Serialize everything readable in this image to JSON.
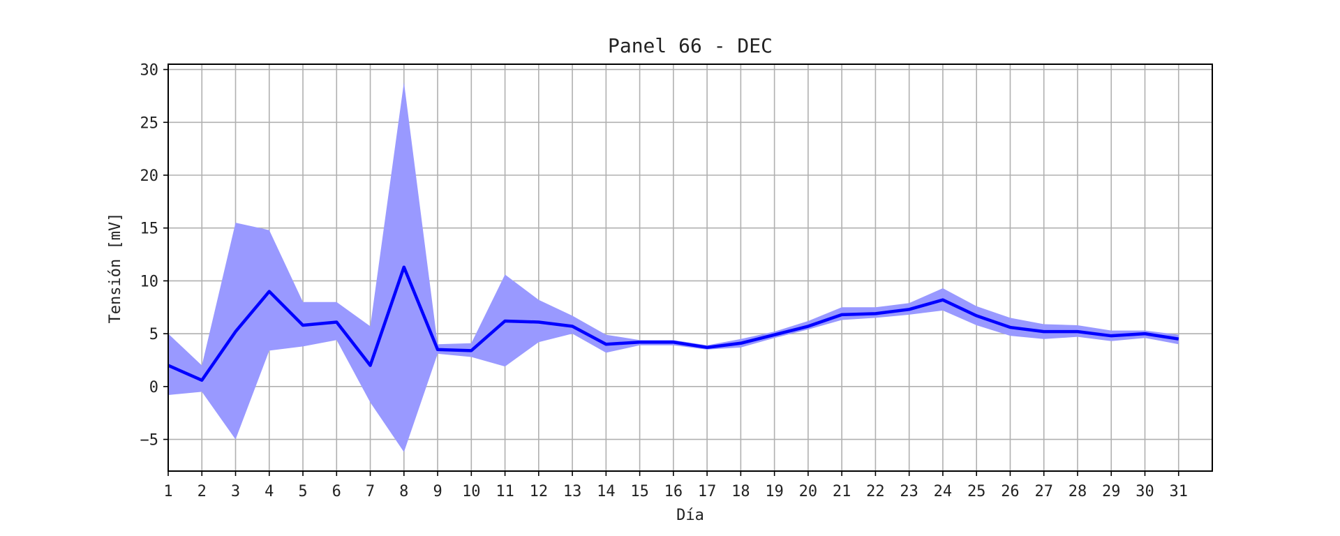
{
  "chart_data": {
    "type": "line",
    "title": "Panel 66 - DEC",
    "xlabel": "Día",
    "ylabel": "Tensión [mV]",
    "x": [
      1,
      2,
      3,
      4,
      5,
      6,
      7,
      8,
      9,
      10,
      11,
      12,
      13,
      14,
      15,
      16,
      17,
      18,
      19,
      20,
      21,
      22,
      23,
      24,
      25,
      26,
      27,
      28,
      29,
      30,
      31
    ],
    "xlim": [
      1,
      32
    ],
    "ylim": [
      -8,
      30.5
    ],
    "yticks": [
      -5,
      0,
      5,
      10,
      15,
      20,
      25,
      30
    ],
    "grid": true,
    "series": [
      {
        "mean": [
          2.0,
          0.6,
          5.2,
          9.0,
          5.8,
          6.1,
          2.0,
          11.3,
          3.5,
          3.4,
          6.2,
          6.1,
          5.7,
          4.0,
          4.2,
          4.2,
          3.7,
          4.1,
          4.9,
          5.7,
          6.8,
          6.9,
          7.3,
          8.2,
          6.7,
          5.6,
          5.2,
          5.2,
          4.8,
          5.0,
          4.5
        ],
        "upper": [
          5.0,
          2.0,
          15.5,
          14.8,
          8.0,
          8.0,
          5.7,
          28.8,
          4.0,
          4.1,
          10.6,
          8.2,
          6.7,
          4.9,
          4.4,
          4.4,
          3.9,
          4.5,
          5.2,
          6.2,
          7.5,
          7.5,
          7.9,
          9.3,
          7.6,
          6.5,
          5.9,
          5.8,
          5.3,
          5.3,
          4.9
        ],
        "lower": [
          -0.8,
          -0.5,
          -5.0,
          3.4,
          3.8,
          4.4,
          -1.5,
          -6.2,
          3.1,
          2.8,
          1.9,
          4.2,
          5.0,
          3.2,
          3.9,
          3.9,
          3.5,
          3.7,
          4.6,
          5.4,
          6.3,
          6.5,
          6.8,
          7.2,
          5.8,
          4.8,
          4.5,
          4.7,
          4.3,
          4.6,
          4.0
        ],
        "line_color": "#0000ff",
        "band_color": "#9999ff"
      }
    ]
  }
}
